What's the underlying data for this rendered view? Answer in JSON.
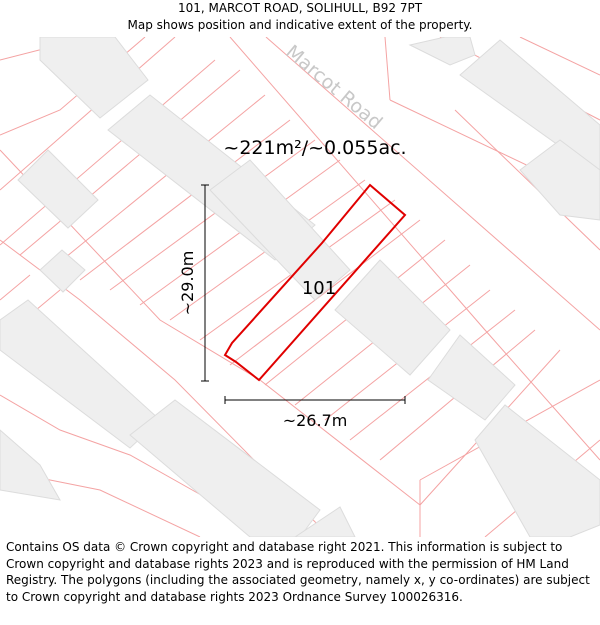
{
  "header": {
    "address": "101, MARCOT ROAD, SOLIHULL, B92 7PT",
    "subtitle": "Map shows position and indicative extent of the property."
  },
  "map": {
    "road_name": "Marcot Road",
    "area_label": "~221m²/~0.055ac.",
    "plot_label": "101",
    "height_label": "~29.0m",
    "width_label": "~26.7m",
    "colors": {
      "boundary": "#f4a3a3",
      "building_fill": "#efefef",
      "building_stroke": "#dcdcdc",
      "plot_outline": "#e00000",
      "dimension_line": "#000000"
    }
  },
  "footer": {
    "copyright": "Contains OS data © Crown copyright and database right 2021. This information is subject to Crown copyright and database rights 2023 and is reproduced with the permission of HM Land Registry. The polygons (including the associated geometry, namely x, y co-ordinates) are subject to Crown copyright and database rights 2023 Ordnance Survey 100026316."
  }
}
